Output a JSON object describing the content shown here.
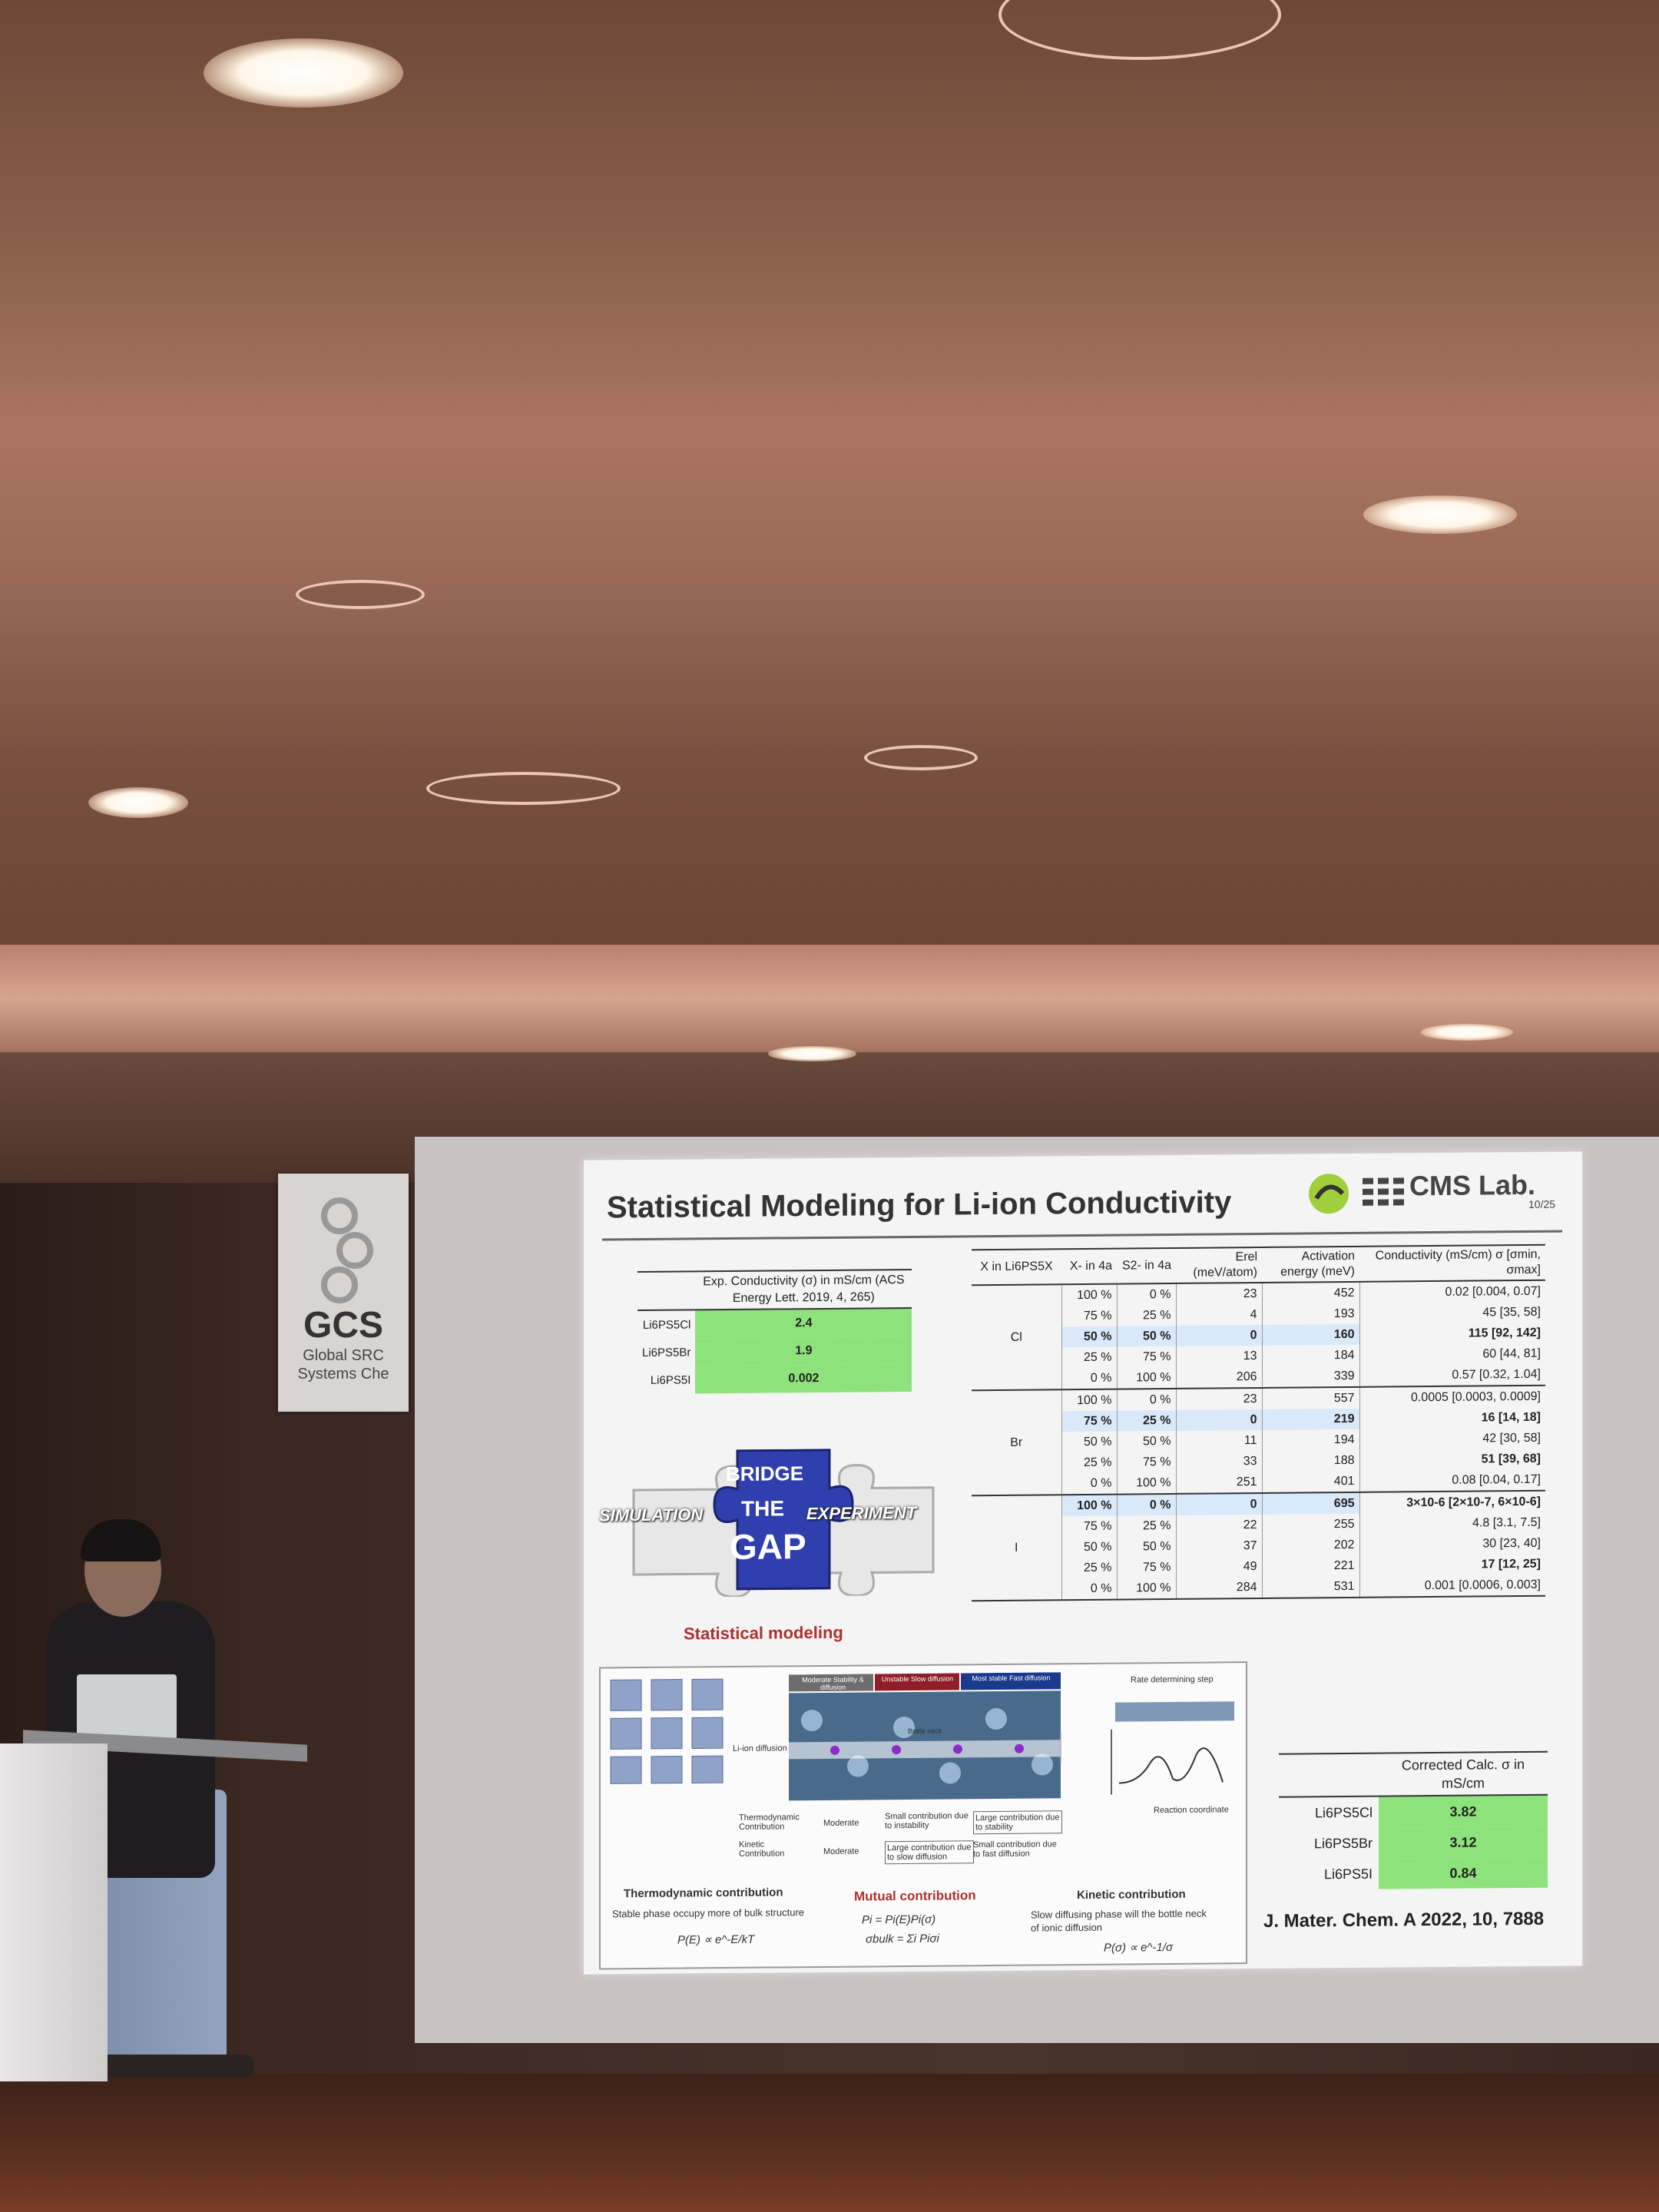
{
  "banner": {
    "main": "GCS",
    "line1": "Global SRC",
    "line2": "Systems Che"
  },
  "slide": {
    "title": "Statistical Modeling for Li-ion Conductivity",
    "logo": "CMS Lab.",
    "page": "10/25",
    "exp_table": {
      "header": "Exp. Conductivity (σ) in mS/cm (ACS Energy Lett. 2019, 4, 265)",
      "rows": [
        {
          "label": "Li6PS5Cl",
          "value": "2.4"
        },
        {
          "label": "Li6PS5Br",
          "value": "1.9"
        },
        {
          "label": "Li6PS5I",
          "value": "0.002"
        }
      ]
    },
    "big_table": {
      "headers": [
        "X in Li6PS5X",
        "X- in 4a",
        "S2- in 4a",
        "Erel (meV/atom)",
        "Activation energy (meV)",
        "Conductivity (mS/cm) σ [σmin, σmax]"
      ],
      "groups": [
        {
          "name": "Cl",
          "rows": [
            [
              "100 %",
              "0 %",
              "23",
              "452",
              "0.02 [0.004, 0.07]"
            ],
            [
              "75 %",
              "25 %",
              "4",
              "193",
              "45 [35, 58]"
            ],
            [
              "50 %",
              "50 %",
              "0",
              "160",
              "115 [92, 142]"
            ],
            [
              "25 %",
              "75 %",
              "13",
              "184",
              "60 [44, 81]"
            ],
            [
              "0 %",
              "100 %",
              "206",
              "339",
              "0.57 [0.32, 1.04]"
            ]
          ]
        },
        {
          "name": "Br",
          "rows": [
            [
              "100 %",
              "0 %",
              "23",
              "557",
              "0.0005 [0.0003, 0.0009]"
            ],
            [
              "75 %",
              "25 %",
              "0",
              "219",
              "16 [14, 18]"
            ],
            [
              "50 %",
              "50 %",
              "11",
              "194",
              "42 [30, 58]"
            ],
            [
              "25 %",
              "75 %",
              "33",
              "188",
              "51 [39, 68]"
            ],
            [
              "0 %",
              "100 %",
              "251",
              "401",
              "0.08 [0.04, 0.17]"
            ]
          ]
        },
        {
          "name": "I",
          "rows": [
            [
              "100 %",
              "0 %",
              "0",
              "695",
              "3×10-6 [2×10-7, 6×10-6]"
            ],
            [
              "75 %",
              "25 %",
              "22",
              "255",
              "4.8 [3.1, 7.5]"
            ],
            [
              "50 %",
              "50 %",
              "37",
              "202",
              "30 [23, 40]"
            ],
            [
              "25 %",
              "75 %",
              "49",
              "221",
              "17 [12, 25]"
            ],
            [
              "0 %",
              "100 %",
              "284",
              "531",
              "0.001 [0.0006, 0.003]"
            ]
          ]
        }
      ]
    },
    "puzzle": {
      "left": "SIMULATION",
      "right": "EXPERIMENT",
      "bridge": "BRIDGE",
      "the": "THE",
      "gap": "GAP"
    },
    "stat_label": "Statistical modeling",
    "diagram": {
      "li_ion": "Li-ion diffusion",
      "moderate_head": "Moderate Stability & diffusion",
      "unstable_head": "Unstable Slow diffusion",
      "stable_head": "Most stable Fast diffusion",
      "bottle_neck": "Bottle neck",
      "rate_step": "Rate determining step",
      "reaction_coord": "Reaction coordinate",
      "thermo_contrib": "Thermodynamic Contribution",
      "kinetic_contrib": "Kinetic Contribution",
      "moderate1": "Moderate",
      "moderate2": "Moderate",
      "small_instab": "Small contribution due to instability",
      "large_stab": "Large contribution due to stability",
      "large_slow": "Large contribution due to slow diffusion",
      "small_fast": "Small contribution due to fast diffusion",
      "thermo_label": "Thermodynamic contribution",
      "thermo_desc": "Stable phase occupy more of bulk structure",
      "thermo_eq": "P(E) ∝ e^-E/kT",
      "mutual_label": "Mutual contribution",
      "mutual_eq1": "Pi = Pi(E)Pi(σ)",
      "mutual_eq2": "σbulk = Σi Piσi",
      "kinetic_label": "Kinetic contribution",
      "kinetic_desc1": "Slow diffusing phase will the bottle neck",
      "kinetic_desc2": "of ionic diffusion",
      "kinetic_eq": "P(σ) ∝ e^-1/σ"
    },
    "corr_table": {
      "header": "Corrected Calc. σ in mS/cm",
      "rows": [
        {
          "label": "Li6PS5Cl",
          "value": "3.82"
        },
        {
          "label": "Li6PS5Br",
          "value": "3.12"
        },
        {
          "label": "Li6PS5I",
          "value": "0.84"
        }
      ]
    },
    "citation": "J. Mater. Chem. A 2022, 10, 7888"
  }
}
